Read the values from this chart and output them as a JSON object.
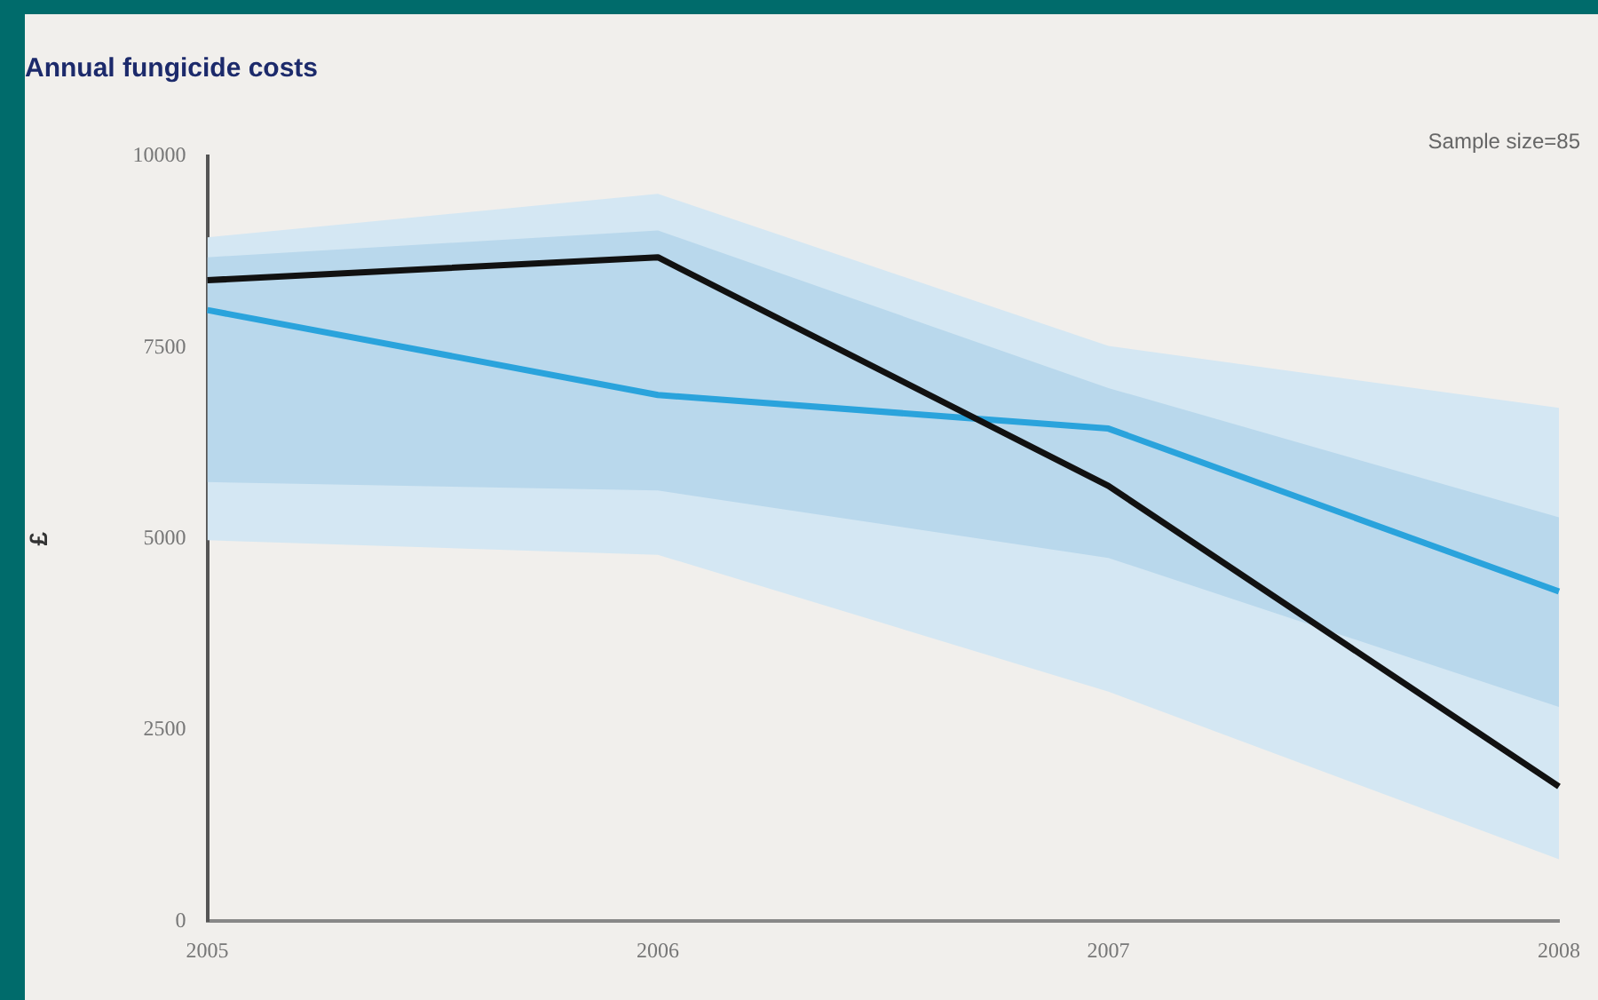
{
  "chart_data": {
    "type": "line",
    "title": "Annual fungicide costs",
    "ylabel": "£",
    "annotations": [
      "Sample size=85"
    ],
    "categories": [
      "2005",
      "2006",
      "2007",
      "2008"
    ],
    "series": [
      {
        "color": "#111111",
        "values": [
          8380,
          8680,
          5690,
          1760
        ],
        "lower": [
          4980,
          4790,
          3000,
          810
        ],
        "upper": [
          8940,
          9510,
          7520,
          6710
        ]
      },
      {
        "color": "#2aa3dc",
        "values": [
          7990,
          6880,
          6440,
          4310
        ],
        "lower": [
          5740,
          5630,
          4750,
          2800
        ],
        "upper": [
          8680,
          9030,
          6970,
          5280
        ]
      }
    ],
    "ylim": [
      0,
      10000
    ],
    "yticks": [
      0,
      2500,
      5000,
      7500,
      10000
    ],
    "grid": false,
    "legend": false,
    "marker": "none",
    "line_style": "solid"
  }
}
